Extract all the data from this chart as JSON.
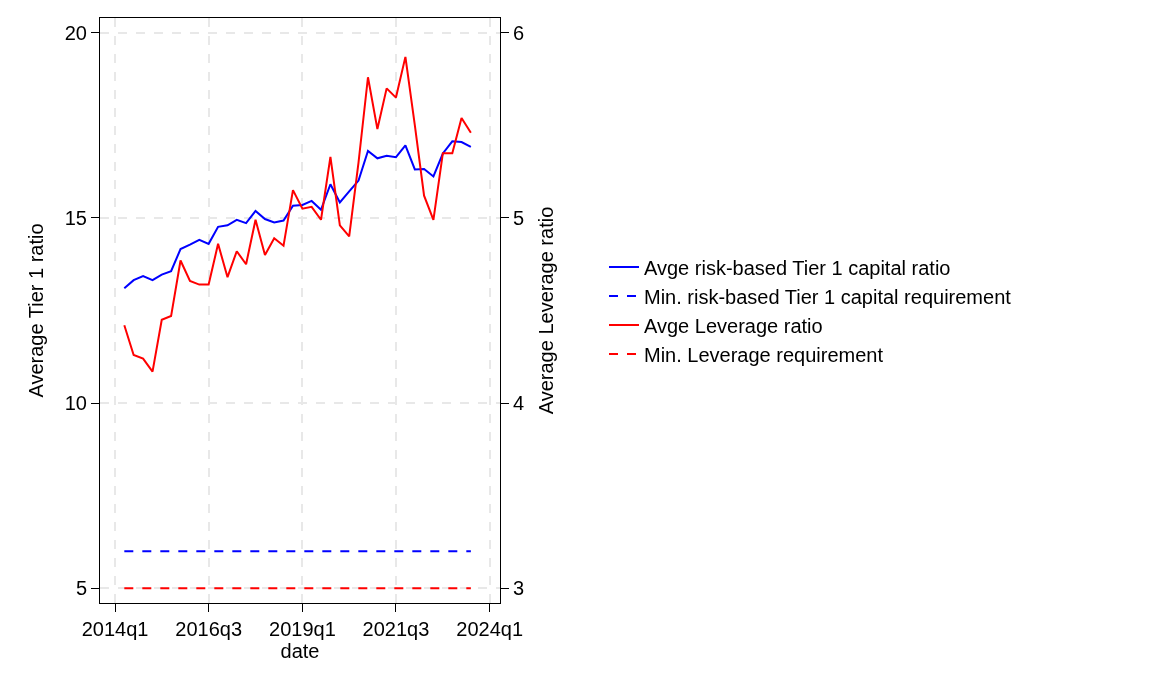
{
  "chart_data": {
    "type": "line",
    "xlabel": "date",
    "ylabel": "Average Tier 1 ratio",
    "y2label": "Average Leverage ratio",
    "x": [
      "2014-04",
      "2014-07",
      "2014-10",
      "2015-01",
      "2015-04",
      "2015-07",
      "2015-10",
      "2016-01",
      "2016-04",
      "2016-07",
      "2016-10",
      "2017-01",
      "2017-04",
      "2017-07",
      "2017-10",
      "2018-01",
      "2018-04",
      "2018-07",
      "2018-10",
      "2019-01",
      "2019-04",
      "2019-07",
      "2019-10",
      "2020-01",
      "2020-04",
      "2020-07",
      "2020-10",
      "2021-01",
      "2021-04",
      "2021-07",
      "2021-10",
      "2022-01",
      "2022-04",
      "2022-07",
      "2022-10",
      "2023-01",
      "2023-04",
      "2023-07"
    ],
    "series": [
      {
        "name": "Avge risk-based Tier 1 capital ratio",
        "color": "#0000ff",
        "line_style": "solid",
        "values": [
          13.1,
          13.32,
          13.43,
          13.32,
          13.47,
          13.56,
          14.16,
          14.28,
          14.41,
          14.3,
          14.76,
          14.8,
          14.95,
          14.86,
          15.19,
          14.97,
          14.88,
          14.93,
          15.33,
          15.35,
          15.46,
          15.22,
          15.91,
          15.42,
          15.72,
          16.01,
          16.81,
          16.61,
          16.68,
          16.64,
          16.96,
          16.31,
          16.32,
          16.12,
          16.74,
          17.07,
          17.05,
          16.92
        ]
      },
      {
        "name": "Min. risk-based Tier 1 capital requirement",
        "color": "#0000ff",
        "line_style": "dashed",
        "values": [
          6,
          6,
          6,
          6,
          6,
          6,
          6,
          6,
          6,
          6,
          6,
          6,
          6,
          6,
          6,
          6,
          6,
          6,
          6,
          6,
          6,
          6,
          6,
          6,
          6,
          6,
          6,
          6,
          6,
          6,
          6,
          6,
          6,
          6,
          6,
          6,
          6,
          6
        ]
      },
      {
        "name": "Avge Leverage ratio",
        "color": "#ff0000",
        "line_style": "solid",
        "axis": "y2",
        "values": [
          4.42,
          4.26,
          4.24,
          4.17,
          4.45,
          4.47,
          4.77,
          4.66,
          4.64,
          4.64,
          4.86,
          4.68,
          4.82,
          4.75,
          4.99,
          4.8,
          4.89,
          4.85,
          5.15,
          5.05,
          5.06,
          4.99,
          5.33,
          4.96,
          4.9,
          5.3,
          5.76,
          5.48,
          5.7,
          5.65,
          5.87,
          5.5,
          5.12,
          4.99,
          5.35,
          5.35,
          5.54,
          5.46
        ]
      },
      {
        "name": "Min. Leverage requirement",
        "color": "#ff0000",
        "line_style": "dashed",
        "axis": "y2",
        "values": [
          3,
          3,
          3,
          3,
          3,
          3,
          3,
          3,
          3,
          3,
          3,
          3,
          3,
          3,
          3,
          3,
          3,
          3,
          3,
          3,
          3,
          3,
          3,
          3,
          3,
          3,
          3,
          3,
          3,
          3,
          3,
          3,
          3,
          3,
          3,
          3,
          3,
          3
        ]
      }
    ],
    "xlim": [
      "2013-08-07",
      "2024-04-10"
    ],
    "xticks": [
      {
        "value": "2014-01",
        "label": "2014q1"
      },
      {
        "value": "2016-07",
        "label": "2016q3"
      },
      {
        "value": "2019-01",
        "label": "2019q1"
      },
      {
        "value": "2021-07",
        "label": "2021q3"
      },
      {
        "value": "2024-01",
        "label": "2024q1"
      }
    ],
    "ylim": [
      4.6,
      20.4
    ],
    "yticks": [
      5,
      10,
      15,
      20
    ],
    "y2lim": [
      2.92,
      6.08
    ],
    "y2ticks": [
      3,
      4,
      5,
      6
    ],
    "grid": true,
    "legend": "right",
    "marker": "none"
  }
}
